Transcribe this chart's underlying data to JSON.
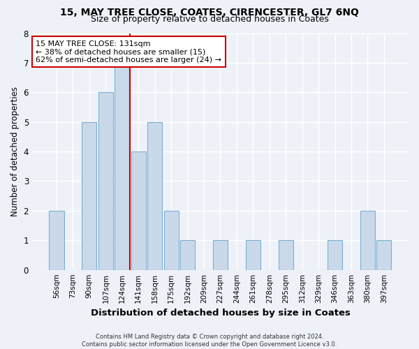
{
  "title1": "15, MAY TREE CLOSE, COATES, CIRENCESTER, GL7 6NQ",
  "title2": "Size of property relative to detached houses in Coates",
  "xlabel": "Distribution of detached houses by size in Coates",
  "ylabel": "Number of detached properties",
  "bar_labels": [
    "56sqm",
    "73sqm",
    "90sqm",
    "107sqm",
    "124sqm",
    "141sqm",
    "158sqm",
    "175sqm",
    "192sqm",
    "209sqm",
    "227sqm",
    "244sqm",
    "261sqm",
    "278sqm",
    "295sqm",
    "312sqm",
    "329sqm",
    "346sqm",
    "363sqm",
    "380sqm",
    "397sqm"
  ],
  "bar_values": [
    2,
    0,
    5,
    6,
    7,
    4,
    5,
    2,
    1,
    0,
    1,
    0,
    1,
    0,
    1,
    0,
    0,
    1,
    0,
    2,
    1
  ],
  "bar_color": "#c9d9ea",
  "bar_edge_color": "#7bafd4",
  "vline_x": 4.5,
  "vline_color": "#cc0000",
  "annotation_text": "15 MAY TREE CLOSE: 131sqm\n← 38% of detached houses are smaller (15)\n62% of semi-detached houses are larger (24) →",
  "annotation_box_color": "white",
  "annotation_box_edge_color": "#cc0000",
  "ylim": [
    0,
    8
  ],
  "yticks": [
    0,
    1,
    2,
    3,
    4,
    5,
    6,
    7,
    8
  ],
  "footnote": "Contains HM Land Registry data © Crown copyright and database right 2024.\nContains public sector information licensed under the Open Government Licence v3.0.",
  "bg_color": "#eef2f8",
  "plot_bg_color": "#eef2f8",
  "grid_color": "#ffffff",
  "title_fontsize": 10,
  "subtitle_fontsize": 9,
  "axis_label_fontsize": 8.5,
  "tick_fontsize": 7.5,
  "annotation_fontsize": 8,
  "footnote_fontsize": 6
}
